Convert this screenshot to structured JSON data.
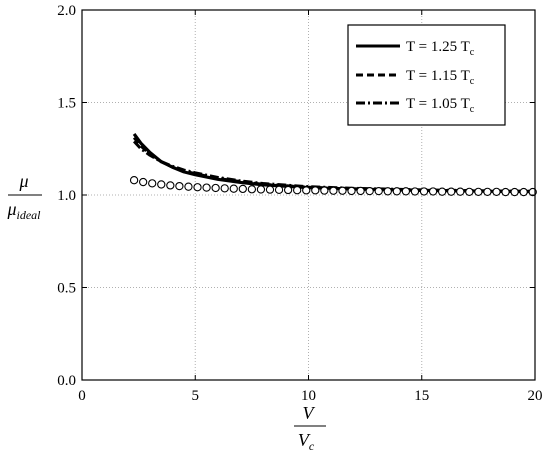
{
  "chart_data": {
    "type": "line",
    "title": "",
    "xlabel": {
      "numerator": "V",
      "denominator": "V",
      "denominator_sub": "c"
    },
    "ylabel": {
      "numerator": "μ",
      "denominator": "μ",
      "denominator_sub": "ideal"
    },
    "xlim": [
      0,
      20
    ],
    "ylim": [
      0.0,
      2.0
    ],
    "xticks": [
      0,
      5,
      10,
      15,
      20
    ],
    "xtick_labels": [
      "0",
      "5",
      "10",
      "15",
      "20"
    ],
    "yticks": [
      0.0,
      0.5,
      1.0,
      1.5,
      2.0
    ],
    "ytick_labels": [
      "0.0",
      "0.5",
      "1.0",
      "1.5",
      "2.0"
    ],
    "grid": true,
    "legend_position": "top-right",
    "series": [
      {
        "name": "T = 1.25 T",
        "name_sub": "c",
        "style": "solid",
        "color": "#000000",
        "x": [
          2.3,
          2.6,
          3.0,
          3.5,
          4.0,
          4.5,
          5.0,
          6.0,
          7.0,
          8.0,
          10.0,
          12.0,
          15.0,
          18.0,
          20.0
        ],
        "y": [
          1.33,
          1.28,
          1.23,
          1.18,
          1.15,
          1.125,
          1.11,
          1.085,
          1.068,
          1.055,
          1.04,
          1.032,
          1.025,
          1.02,
          1.018
        ]
      },
      {
        "name": "T = 1.15 T",
        "name_sub": "c",
        "style": "dashed",
        "color": "#000000",
        "x": [
          2.3,
          2.6,
          3.0,
          3.5,
          4.0,
          4.5,
          5.0,
          6.0,
          7.0,
          8.0,
          10.0,
          12.0,
          15.0,
          18.0,
          20.0
        ],
        "y": [
          1.31,
          1.265,
          1.22,
          1.18,
          1.15,
          1.13,
          1.115,
          1.09,
          1.072,
          1.058,
          1.042,
          1.034,
          1.026,
          1.021,
          1.019
        ]
      },
      {
        "name": "T = 1.05 T",
        "name_sub": "c",
        "style": "dashdot",
        "color": "#000000",
        "x": [
          2.3,
          2.6,
          3.0,
          3.5,
          4.0,
          4.5,
          5.0,
          6.0,
          7.0,
          8.0,
          10.0,
          12.0,
          15.0,
          18.0,
          20.0
        ],
        "y": [
          1.29,
          1.25,
          1.215,
          1.18,
          1.155,
          1.135,
          1.12,
          1.095,
          1.076,
          1.062,
          1.045,
          1.036,
          1.028,
          1.022,
          1.02
        ]
      },
      {
        "name": "",
        "style": "markers",
        "marker": "open-circle",
        "color": "#000000",
        "x": [
          2.3,
          2.7,
          3.1,
          3.5,
          3.9,
          4.3,
          4.7,
          5.1,
          5.5,
          5.9,
          6.3,
          6.7,
          7.1,
          7.5,
          7.9,
          8.3,
          8.7,
          9.1,
          9.5,
          9.9,
          10.3,
          10.7,
          11.1,
          11.5,
          11.9,
          12.3,
          12.7,
          13.1,
          13.5,
          13.9,
          14.3,
          14.7,
          15.1,
          15.5,
          15.9,
          16.3,
          16.7,
          17.1,
          17.5,
          17.9,
          18.3,
          18.7,
          19.1,
          19.5,
          19.9
        ],
        "y": [
          1.08,
          1.07,
          1.063,
          1.057,
          1.052,
          1.048,
          1.045,
          1.042,
          1.04,
          1.038,
          1.036,
          1.034,
          1.033,
          1.031,
          1.03,
          1.029,
          1.028,
          1.027,
          1.026,
          1.025,
          1.025,
          1.024,
          1.023,
          1.023,
          1.022,
          1.022,
          1.021,
          1.021,
          1.02,
          1.02,
          1.02,
          1.019,
          1.019,
          1.019,
          1.018,
          1.018,
          1.018,
          1.017,
          1.017,
          1.017,
          1.017,
          1.016,
          1.016,
          1.016,
          1.016
        ]
      }
    ]
  }
}
